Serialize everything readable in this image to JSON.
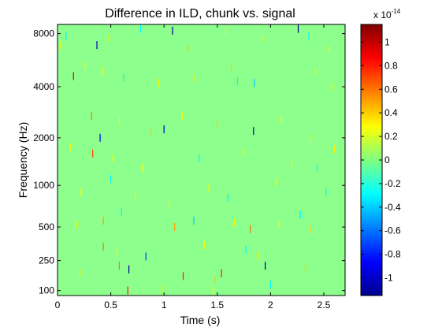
{
  "chart_data": {
    "type": "heatmap",
    "title": "Difference in ILD, chunk vs. signal",
    "xlabel": "Time (s)",
    "ylabel": "Frequency (Hz)",
    "xlim": [
      0,
      2.7
    ],
    "x_ticks": [
      0,
      0.5,
      1,
      1.5,
      2,
      2.5
    ],
    "x_tick_labels": [
      "0",
      "0.5",
      "1",
      "1.5",
      "2",
      "2.5"
    ],
    "y_scale": "erb",
    "ylim": [
      80,
      9000
    ],
    "y_ticks": [
      100,
      250,
      500,
      1000,
      2000,
      4000,
      8000
    ],
    "y_tick_labels": [
      "100",
      "250",
      "500",
      "1000",
      "2000",
      "4000",
      "8000"
    ],
    "background_value": 0,
    "colorbar": {
      "colormap": "jet",
      "clim": [
        -1.15,
        1.15
      ],
      "multiplier_label": "x 10",
      "multiplier_exponent": "-14",
      "ticks": [
        -1,
        -0.8,
        -0.6,
        -0.4,
        -0.2,
        0,
        0.2,
        0.4,
        0.6,
        0.8,
        1
      ],
      "tick_labels": [
        "-1",
        "-0.8",
        "-0.6",
        "-0.4",
        "-0.2",
        "0",
        "0.2",
        "0.4",
        "0.6",
        "0.8",
        "1"
      ]
    },
    "cells": [
      {
        "t": 0.03,
        "f": 6900,
        "v": 0.3
      },
      {
        "t": 0.08,
        "f": 7800,
        "v": -0.3
      },
      {
        "t": 0.26,
        "f": 5300,
        "v": 0.3
      },
      {
        "t": 0.37,
        "f": 6900,
        "v": -1.0
      },
      {
        "t": 0.48,
        "f": 7600,
        "v": 0.2
      },
      {
        "t": 0.78,
        "f": 8500,
        "v": -0.3
      },
      {
        "t": 1.08,
        "f": 8300,
        "v": -1.1
      },
      {
        "t": 1.22,
        "f": 6600,
        "v": 0.4
      },
      {
        "t": 1.58,
        "f": 8300,
        "v": 0.25
      },
      {
        "t": 1.92,
        "f": 7500,
        "v": 0.2
      },
      {
        "t": 2.26,
        "f": 8500,
        "v": -1.1
      },
      {
        "t": 2.36,
        "f": 7700,
        "v": -0.3
      },
      {
        "t": 2.55,
        "f": 6500,
        "v": 0.25
      },
      {
        "t": 0.15,
        "f": 4600,
        "v": 0.9
      },
      {
        "t": 0.42,
        "f": 4900,
        "v": 0.3
      },
      {
        "t": 0.62,
        "f": 4500,
        "v": -0.3
      },
      {
        "t": 0.95,
        "f": 4200,
        "v": 0.3
      },
      {
        "t": 1.29,
        "f": 4500,
        "v": 0.25
      },
      {
        "t": 1.63,
        "f": 5200,
        "v": 0.4
      },
      {
        "t": 1.69,
        "f": 4300,
        "v": -0.3
      },
      {
        "t": 1.85,
        "f": 4200,
        "v": -0.4
      },
      {
        "t": 2.42,
        "f": 4900,
        "v": 0.3
      },
      {
        "t": 2.58,
        "f": 4000,
        "v": 0.2
      },
      {
        "t": 0.32,
        "f": 2700,
        "v": 0.6
      },
      {
        "t": 0.4,
        "f": 2000,
        "v": -0.9
      },
      {
        "t": 0.58,
        "f": 2500,
        "v": 0.3
      },
      {
        "t": 0.88,
        "f": 2200,
        "v": 0.4
      },
      {
        "t": 1.0,
        "f": 2250,
        "v": -1.0
      },
      {
        "t": 1.17,
        "f": 2700,
        "v": 0.3
      },
      {
        "t": 1.5,
        "f": 2400,
        "v": 0.4
      },
      {
        "t": 1.84,
        "f": 2200,
        "v": -0.9
      },
      {
        "t": 2.1,
        "f": 2600,
        "v": 0.3
      },
      {
        "t": 2.37,
        "f": 2000,
        "v": 0.2
      },
      {
        "t": 0.12,
        "f": 1750,
        "v": 0.3
      },
      {
        "t": 0.33,
        "f": 1600,
        "v": 0.7
      },
      {
        "t": 0.52,
        "f": 1500,
        "v": 0.25
      },
      {
        "t": 0.8,
        "f": 1300,
        "v": 0.3
      },
      {
        "t": 1.33,
        "f": 1500,
        "v": -0.3
      },
      {
        "t": 1.75,
        "f": 1650,
        "v": 0.3
      },
      {
        "t": 2.2,
        "f": 1400,
        "v": 0.25
      },
      {
        "t": 2.44,
        "f": 1300,
        "v": -0.3
      },
      {
        "t": 2.6,
        "f": 1700,
        "v": 0.3
      },
      {
        "t": 0.22,
        "f": 900,
        "v": 0.25
      },
      {
        "t": 0.5,
        "f": 1100,
        "v": -0.3
      },
      {
        "t": 0.73,
        "f": 850,
        "v": 0.3
      },
      {
        "t": 1.05,
        "f": 750,
        "v": 0.3
      },
      {
        "t": 1.42,
        "f": 950,
        "v": 0.25
      },
      {
        "t": 1.6,
        "f": 820,
        "v": -0.3
      },
      {
        "t": 2.05,
        "f": 1050,
        "v": 0.3
      },
      {
        "t": 2.52,
        "f": 900,
        "v": -0.3
      },
      {
        "t": 0.18,
        "f": 520,
        "v": 0.3
      },
      {
        "t": 0.43,
        "f": 560,
        "v": 0.5
      },
      {
        "t": 0.6,
        "f": 650,
        "v": -0.3
      },
      {
        "t": 1.1,
        "f": 500,
        "v": 0.5
      },
      {
        "t": 1.28,
        "f": 560,
        "v": -0.4
      },
      {
        "t": 1.66,
        "f": 540,
        "v": 0.3
      },
      {
        "t": 1.81,
        "f": 480,
        "v": 0.6
      },
      {
        "t": 2.08,
        "f": 520,
        "v": 0.25
      },
      {
        "t": 2.28,
        "f": 620,
        "v": -0.3
      },
      {
        "t": 2.38,
        "f": 480,
        "v": 0.4
      },
      {
        "t": 0.43,
        "f": 340,
        "v": 0.6
      },
      {
        "t": 0.56,
        "f": 300,
        "v": 0.2
      },
      {
        "t": 0.83,
        "f": 275,
        "v": -0.7
      },
      {
        "t": 1.38,
        "f": 350,
        "v": 0.25
      },
      {
        "t": 1.77,
        "f": 320,
        "v": -0.3
      },
      {
        "t": 1.89,
        "f": 280,
        "v": 0.3
      },
      {
        "t": 0.58,
        "f": 220,
        "v": 0.6
      },
      {
        "t": 0.67,
        "f": 200,
        "v": -1.1
      },
      {
        "t": 1.18,
        "f": 165,
        "v": 0.8
      },
      {
        "t": 1.48,
        "f": 150,
        "v": 0.4
      },
      {
        "t": 1.54,
        "f": 180,
        "v": 0.8
      },
      {
        "t": 1.95,
        "f": 220,
        "v": -1.1
      },
      {
        "t": 2.33,
        "f": 210,
        "v": 0.4
      },
      {
        "t": 0.21,
        "f": 180,
        "v": 0.3
      },
      {
        "t": 0.66,
        "f": 100,
        "v": 0.8
      },
      {
        "t": 0.99,
        "f": 105,
        "v": 0.2
      },
      {
        "t": 1.46,
        "f": 100,
        "v": 0.3
      },
      {
        "t": 2.0,
        "f": 125,
        "v": -0.3
      }
    ]
  }
}
